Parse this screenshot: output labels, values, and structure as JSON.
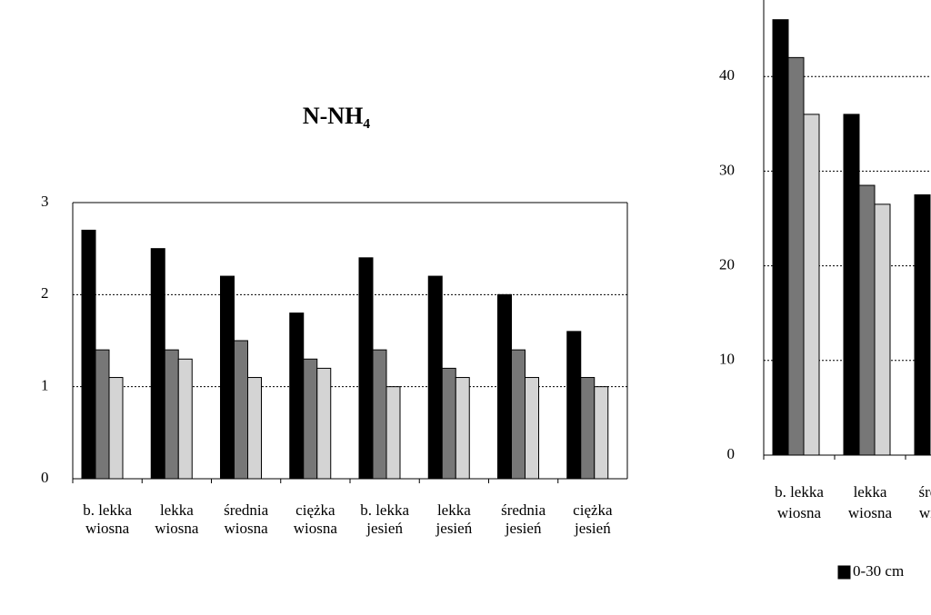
{
  "chart_data": [
    {
      "type": "bar",
      "title": "N-NH₄",
      "categories": [
        [
          "b. lekka",
          "wiosna"
        ],
        [
          "lekka",
          "wiosna"
        ],
        [
          "średnia",
          "wiosna"
        ],
        [
          "ciężka",
          "wiosna"
        ],
        [
          "b. lekka",
          "jesień"
        ],
        [
          "lekka",
          "jesień"
        ],
        [
          "średnia",
          "jesień"
        ],
        [
          "ciężka",
          "jesień"
        ]
      ],
      "series": [
        {
          "color": "#000000",
          "values": [
            2.7,
            2.5,
            2.2,
            1.8,
            2.4,
            2.2,
            2.0,
            1.6
          ]
        },
        {
          "color": "#777777",
          "values": [
            1.4,
            1.4,
            1.5,
            1.3,
            1.4,
            1.2,
            1.4,
            1.1
          ]
        },
        {
          "color": "#d4d4d4",
          "values": [
            1.1,
            1.3,
            1.1,
            1.2,
            1.0,
            1.1,
            1.1,
            1.0
          ]
        }
      ],
      "ylim": [
        0,
        3
      ],
      "yticks": [
        0,
        1,
        2,
        3
      ],
      "grid": true
    },
    {
      "type": "bar",
      "categories": [
        [
          "b. lekka",
          "wiosna"
        ],
        [
          "lekka",
          "wiosna"
        ],
        [
          "średnia",
          "wiosna"
        ]
      ],
      "series": [
        {
          "name": "0-30 cm",
          "color": "#000000",
          "values": [
            46,
            36,
            27.5
          ]
        },
        {
          "color": "#777777",
          "values": [
            42,
            28.5,
            null
          ]
        },
        {
          "color": "#d4d4d4",
          "values": [
            36,
            26.5,
            null
          ]
        }
      ],
      "ylim": [
        0,
        50
      ],
      "yticks": [
        0,
        10,
        20,
        30,
        40
      ],
      "grid": true
    }
  ]
}
